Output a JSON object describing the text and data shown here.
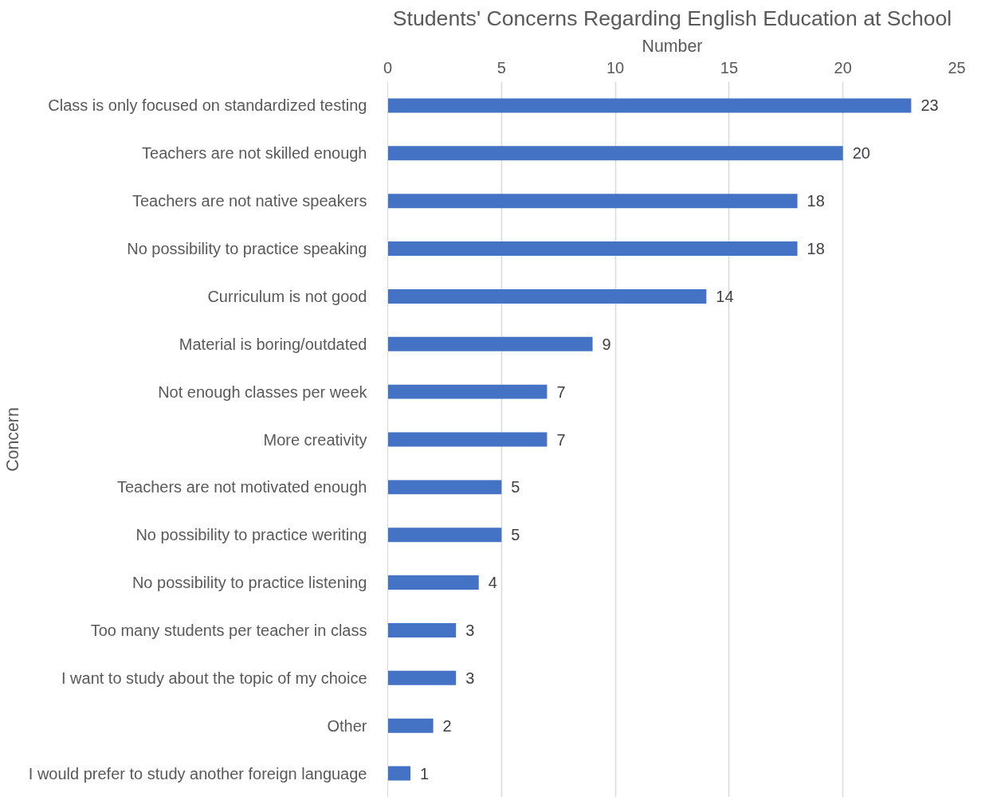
{
  "chart_data": {
    "type": "bar",
    "orientation": "horizontal",
    "title": "Students' Concerns Regarding English Education at School",
    "xlabel": "Number",
    "ylabel": "Concern",
    "categories": [
      "Class is only focused on standardized testing",
      "Teachers are not skilled enough",
      "Teachers are not native speakers",
      "No possibility to practice speaking",
      "Curriculum is not good",
      "Material is boring/outdated",
      "Not enough classes per week",
      "More creativity",
      "Teachers are not motivated enough",
      "No possibility to practice weriting",
      "No possibility to practice listening",
      "Too many students per teacher in class",
      "I want to study about the topic of my choice",
      "Other",
      "I would prefer to study another foreign language"
    ],
    "values": [
      23,
      20,
      18,
      18,
      14,
      9,
      7,
      7,
      5,
      5,
      4,
      3,
      3,
      2,
      1
    ],
    "color": "#4472c4",
    "xlim": [
      0,
      25
    ],
    "xticks": [
      0,
      5,
      10,
      15,
      20,
      25
    ],
    "grid": "x",
    "data_labels": true
  }
}
